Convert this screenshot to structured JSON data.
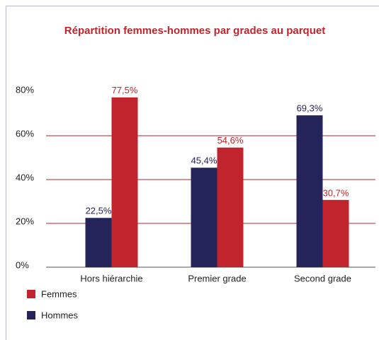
{
  "chart_data": {
    "type": "bar",
    "title": "Répartition femmes-hommes par grades au parquet",
    "categories": [
      "Hors hiérarchie",
      "Premier grade",
      "Second grade"
    ],
    "series": [
      {
        "name": "Hommes",
        "color": "#25245a",
        "values": [
          22.5,
          45.4,
          69.3
        ],
        "value_labels": [
          "22,5%",
          "45,4%",
          "69,3%"
        ]
      },
      {
        "name": "Femmes",
        "color": "#c1242c",
        "values": [
          77.5,
          54.6,
          30.7
        ],
        "value_labels": [
          "77,5%",
          "54,6%",
          "30,7%"
        ]
      }
    ],
    "ylim": [
      0,
      80
    ],
    "yticks": [
      {
        "value": 0,
        "label": "0%"
      },
      {
        "value": 20,
        "label": "20%"
      },
      {
        "value": 40,
        "label": "40%"
      },
      {
        "value": 60,
        "label": "60%"
      },
      {
        "value": 80,
        "label": "80%"
      }
    ],
    "grid": true,
    "grid_color": "#b0252b",
    "legend": "bottom-left"
  }
}
